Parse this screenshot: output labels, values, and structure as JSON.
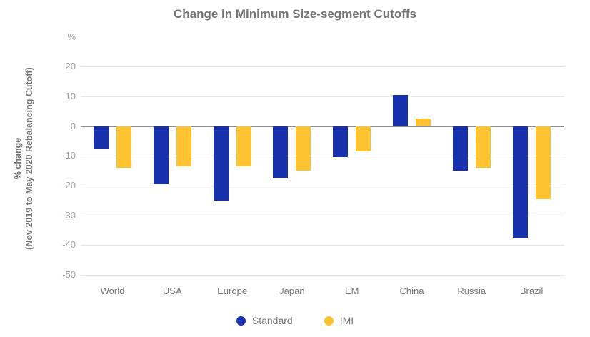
{
  "title": "Change in Minimum Size-segment Cutoffs",
  "y_axis": {
    "unit": "%",
    "title_line1": "% change",
    "title_line2": "(Nov 2019 to May 2020 Rebalancing Cutoff)"
  },
  "legend": {
    "items": [
      {
        "label": "Standard",
        "color": "#1730AB"
      },
      {
        "label": "IMI",
        "color": "#FDC330"
      }
    ]
  },
  "colors": {
    "standard_bar": "#1730AB",
    "imi_bar": "#FDC330",
    "gridline": "#e6e6e6",
    "zero_line": "#8f8f8f",
    "title_text": "#757575",
    "tick_text": "#9e9e9e"
  },
  "chart_data": {
    "type": "bar",
    "title": "Change in Minimum Size-segment Cutoffs",
    "categories": [
      "World",
      "USA",
      "Europe",
      "Japan",
      "EM",
      "China",
      "Russia",
      "Brazil"
    ],
    "series": [
      {
        "name": "Standard",
        "color": "#1730AB",
        "values": [
          -7.5,
          -19.5,
          -25,
          -17.5,
          -10.5,
          10.5,
          -15,
          -37.5
        ]
      },
      {
        "name": "IMI",
        "color": "#FDC330",
        "values": [
          -14,
          -13.5,
          -13.5,
          -15,
          -8.5,
          2.5,
          -14,
          -24.5
        ]
      }
    ],
    "xlabel": "",
    "ylabel": "% change (Nov 2019 to May 2020 Rebalancing Cutoff)",
    "y_unit": "%",
    "yticks": [
      20,
      10,
      0,
      -10,
      -20,
      -30,
      -40,
      -50
    ],
    "ylim": [
      -50,
      25
    ],
    "grid": true,
    "legend_position": "bottom"
  }
}
